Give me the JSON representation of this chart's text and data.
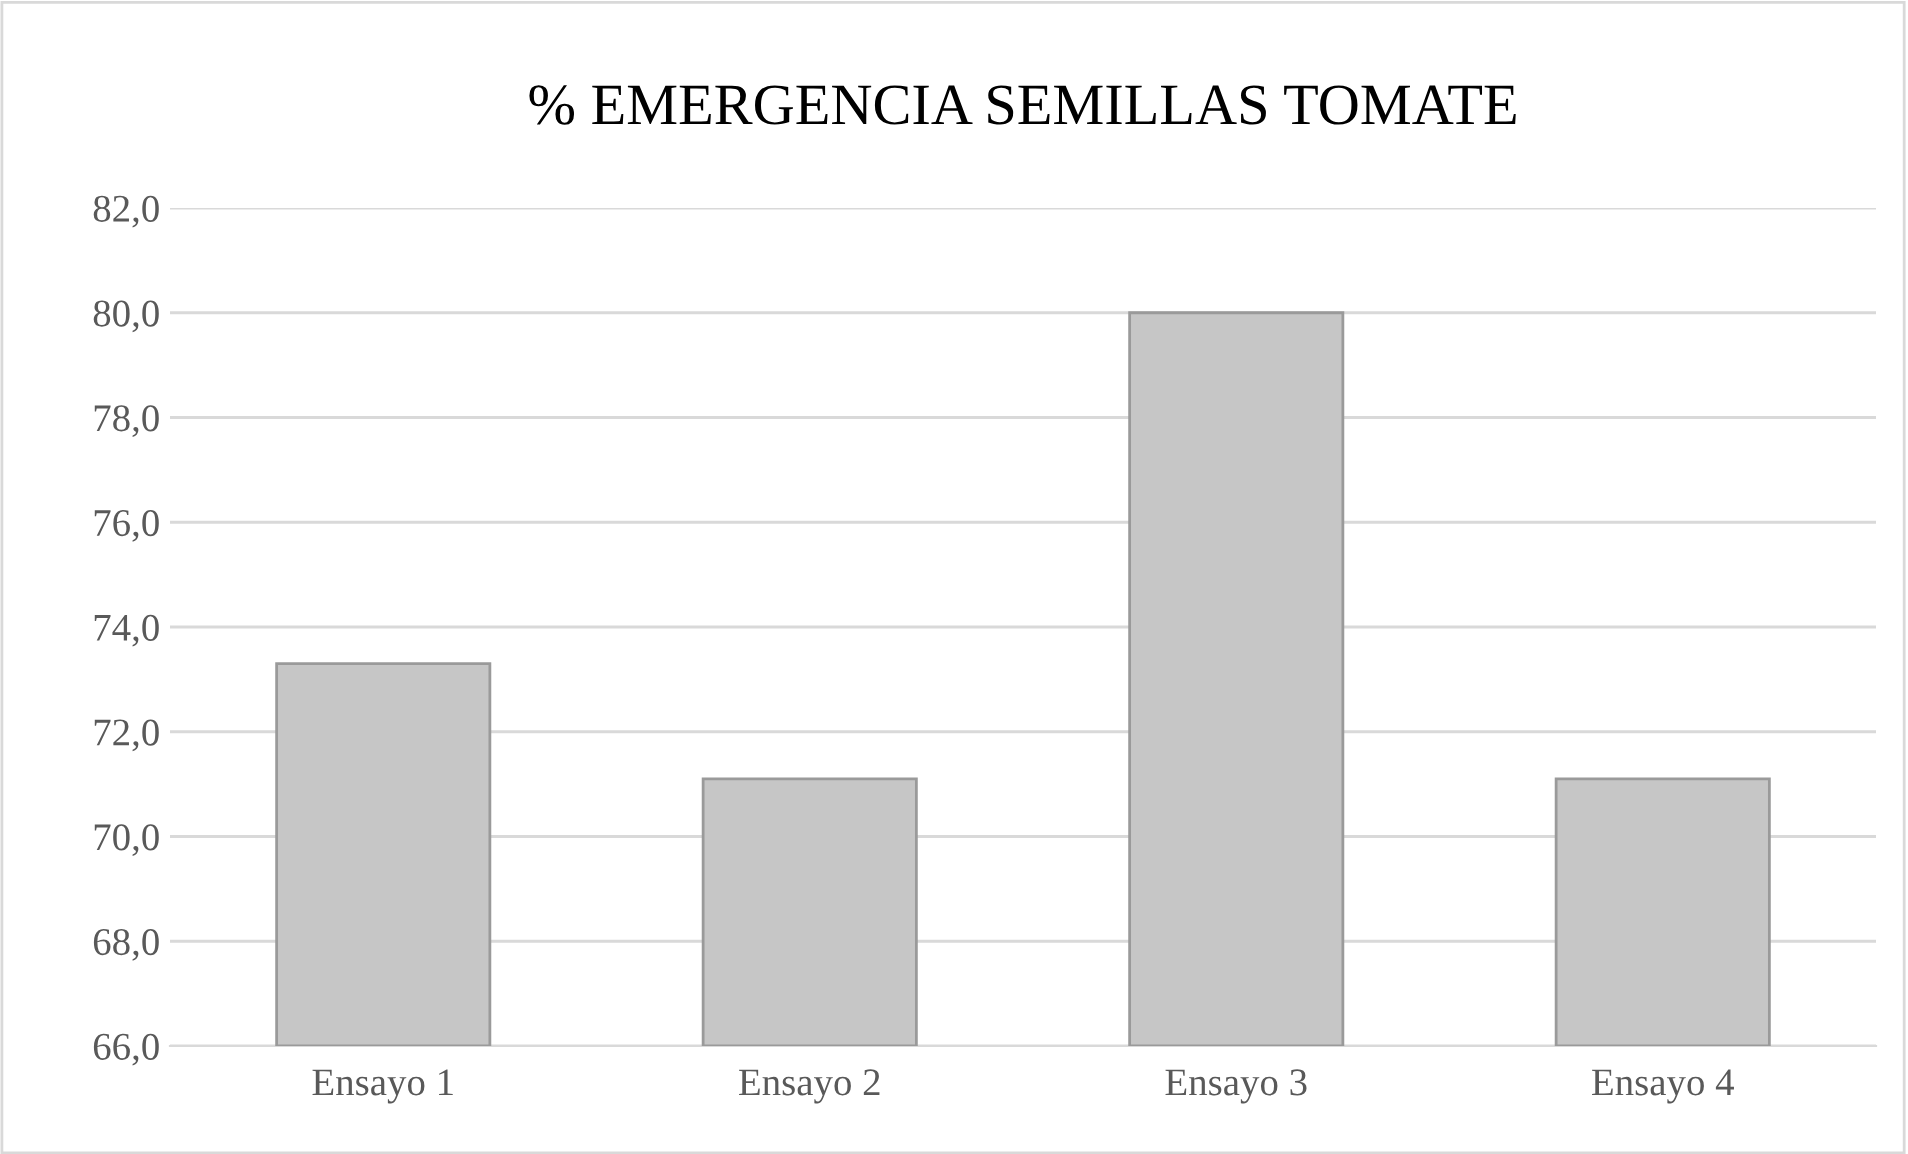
{
  "chart_data": {
    "type": "bar",
    "title": "% EMERGENCIA SEMILLAS TOMATE",
    "categories": [
      "Ensayo 1",
      "Ensayo 2",
      "Ensayo 3",
      "Ensayo 4"
    ],
    "values": [
      73.3,
      71.1,
      80.0,
      71.1
    ],
    "color": "#c6c6c6",
    "ylim": [
      66,
      82
    ],
    "yticks": [
      {
        "value": 66,
        "label": "66,0"
      },
      {
        "value": 68,
        "label": "68,0"
      },
      {
        "value": 70,
        "label": "70,0"
      },
      {
        "value": 72,
        "label": "72,0"
      },
      {
        "value": 74,
        "label": "74,0"
      },
      {
        "value": 76,
        "label": "76,0"
      },
      {
        "value": 78,
        "label": "78,0"
      },
      {
        "value": 80,
        "label": "80,0"
      },
      {
        "value": 82,
        "label": "82,0"
      }
    ],
    "grid": "y"
  }
}
